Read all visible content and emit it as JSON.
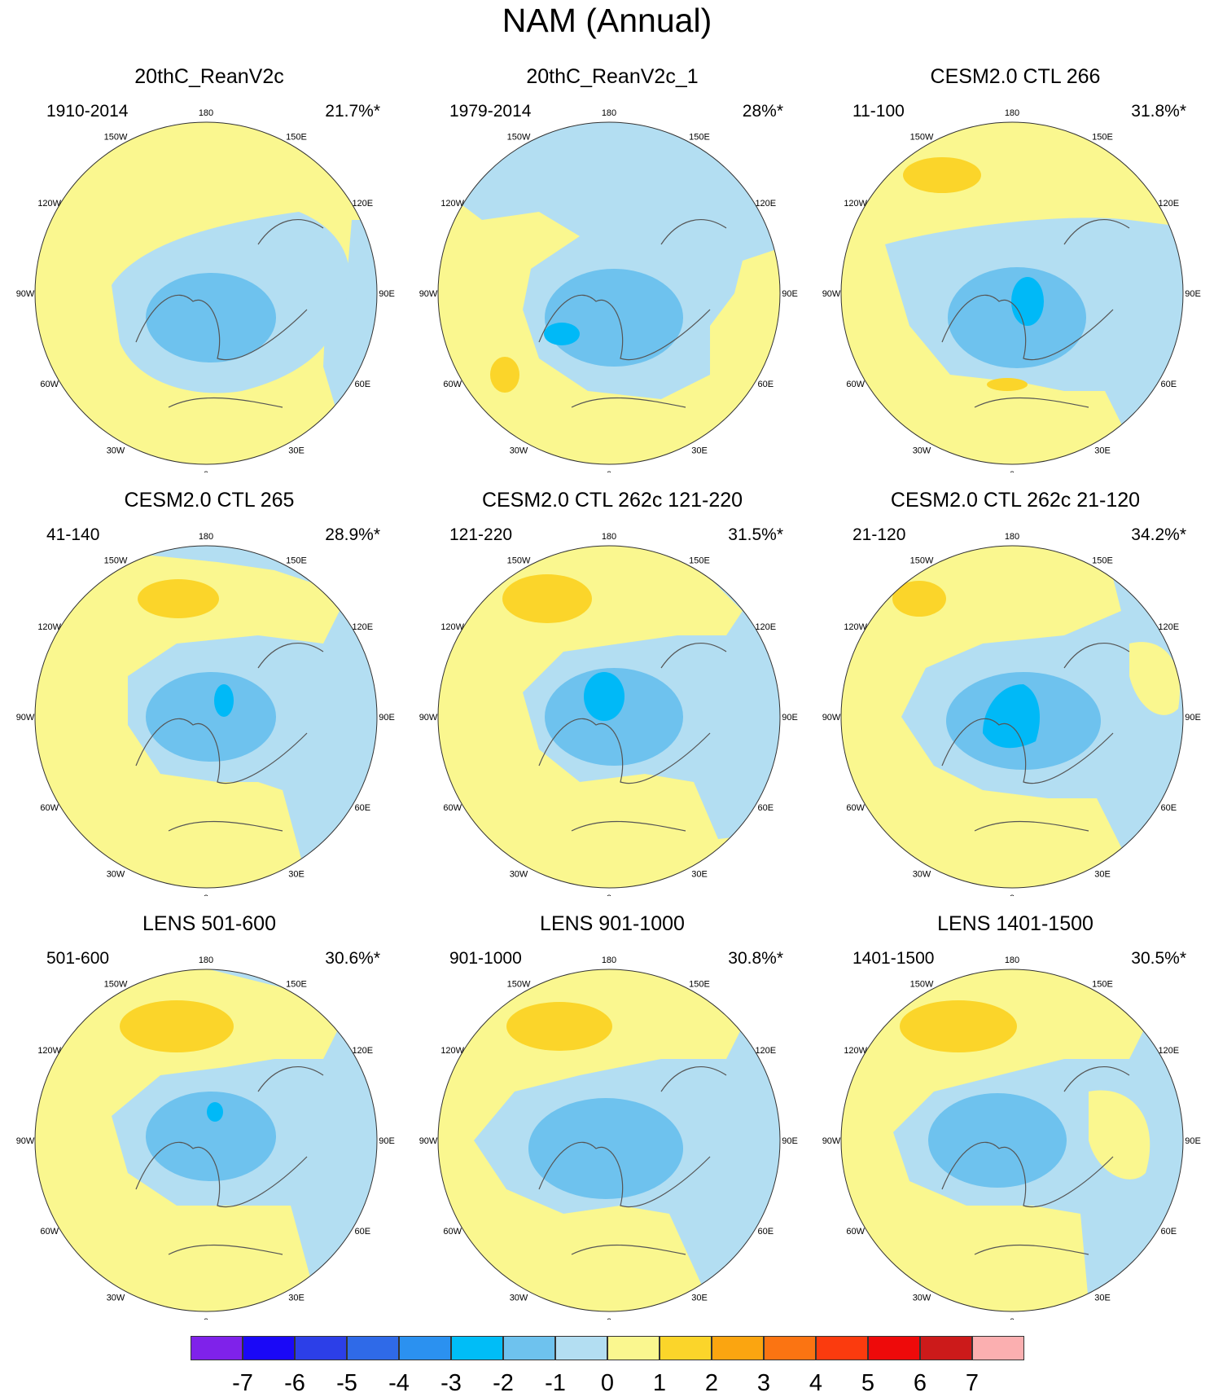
{
  "title": "NAM (Annual)",
  "map_colors": {
    "ocean_base": "#faf78f",
    "light_blue": "#b3def2",
    "mid_blue": "#6ec2ee",
    "deep_blue": "#00b9f7",
    "orange": "#fbd52a",
    "coast": "#555555"
  },
  "lon_labels": [
    "180",
    "150E",
    "120E",
    "90E",
    "60E",
    "30E",
    "0",
    "30W",
    "60W",
    "90W",
    "120W",
    "150W"
  ],
  "panels": [
    {
      "title": "20thC_ReanV2c",
      "period": "1910-2014",
      "variance": "21.7%*"
    },
    {
      "title": "20thC_ReanV2c_1",
      "period": "1979-2014",
      "variance": "28%*"
    },
    {
      "title": "CESM2.0 CTL 266",
      "period": "11-100",
      "variance": "31.8%*"
    },
    {
      "title": "CESM2.0 CTL 265",
      "period": "41-140",
      "variance": "28.9%*"
    },
    {
      "title": "CESM2.0 CTL 262c 121-220",
      "period": "121-220",
      "variance": "31.5%*"
    },
    {
      "title": "CESM2.0 CTL 262c 21-120",
      "period": "21-120",
      "variance": "34.2%*"
    },
    {
      "title": "LENS 501-600",
      "period": "501-600",
      "variance": "30.6%*"
    },
    {
      "title": "LENS 901-1000",
      "period": "901-1000",
      "variance": "30.8%*"
    },
    {
      "title": "LENS 1401-1500",
      "period": "1401-1500",
      "variance": "30.5%*"
    }
  ],
  "colorbar": {
    "colors": [
      "#7f22ea",
      "#1a08f7",
      "#2c3fe8",
      "#2f6ae8",
      "#2b91f0",
      "#00bdf7",
      "#6ec2ee",
      "#b3def2",
      "#faf78f",
      "#fbd52a",
      "#fba510",
      "#fb7412",
      "#fb3b0e",
      "#ee0a0a",
      "#cc1a1a",
      "#fbafb0"
    ],
    "labels": [
      "-7",
      "-6",
      "-5",
      "-4",
      "-3",
      "-2",
      "-1",
      "0",
      "1",
      "2",
      "3",
      "4",
      "5",
      "6",
      "7"
    ]
  }
}
